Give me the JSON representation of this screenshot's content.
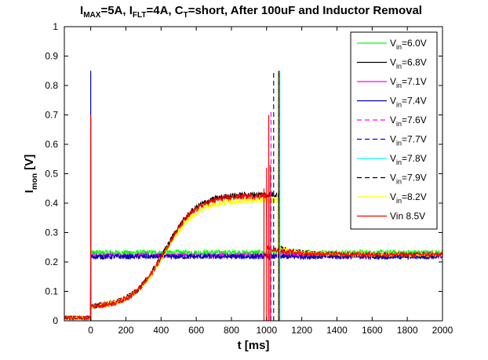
{
  "chart_data": {
    "type": "line",
    "title": {
      "parts": [
        {
          "text": "I",
          "style": "normal"
        },
        {
          "text": "MAX",
          "style": "sub"
        },
        {
          "text": "=5A, I",
          "style": "normal"
        },
        {
          "text": "FLT",
          "style": "sub"
        },
        {
          "text": "=4A, C",
          "style": "normal"
        },
        {
          "text": "T",
          "style": "sub"
        },
        {
          "text": "=short, After 100uF and Inductor Removal",
          "style": "normal"
        }
      ]
    },
    "xlabel": "t [ms]",
    "ylabel": {
      "main": "I",
      "sub": "mon",
      "rest": " [V]"
    },
    "xlim": [
      -150,
      2000
    ],
    "ylim": [
      0,
      1
    ],
    "xticks": [
      0,
      200,
      400,
      600,
      800,
      1000,
      1200,
      1400,
      1600,
      1800,
      2000
    ],
    "yticks": [
      0,
      0.1,
      0.2,
      0.3,
      0.4,
      0.5,
      0.6,
      0.7,
      0.8,
      0.9,
      1
    ],
    "xtick_labels": [
      "0",
      "200",
      "400",
      "600",
      "800",
      "1000",
      "1200",
      "1400",
      "1600",
      "1800",
      "2000"
    ],
    "ytick_labels": [
      "0",
      "0.1",
      "0.2",
      "0.3",
      "0.4",
      "0.5",
      "0.6",
      "0.7",
      "0.8",
      "0.9",
      "1"
    ],
    "grid": false,
    "legend_position": "top-right",
    "series": [
      {
        "name": "V_in=6.0V",
        "label_parts": [
          "V",
          "in",
          "=6.0V"
        ],
        "color": "#00ff00",
        "dash": "solid",
        "profile": "flat",
        "level": 0.232,
        "spike_t": 0,
        "spike_v": 0.6
      },
      {
        "name": "V_in=6.8V",
        "label_parts": [
          "V",
          "in",
          "=6.8V"
        ],
        "color": "#000000",
        "dash": "solid",
        "profile": "ramp",
        "level": 0.43,
        "switch_t": 1070,
        "spike_t": 1070,
        "spike_v": 0.85
      },
      {
        "name": "V_in=7.1V",
        "label_parts": [
          "V",
          "in",
          "=7.1V"
        ],
        "color": "#ff00ff",
        "dash": "solid",
        "profile": "flat",
        "level": 0.222,
        "spike_t": 0,
        "spike_v": 0.55
      },
      {
        "name": "V_in=7.4V",
        "label_parts": [
          "V",
          "in",
          "=7.4V"
        ],
        "color": "#0000b4",
        "dash": "solid",
        "profile": "flat",
        "level": 0.218,
        "spike_t": 0,
        "spike_v": 0.85
      },
      {
        "name": "V_in=7.6V",
        "label_parts": [
          "V",
          "in",
          "=7.6V"
        ],
        "color": "#ff00ff",
        "dash": "dashed",
        "profile": "none",
        "spike_t": 1025,
        "spike_v": 0.72
      },
      {
        "name": "V_in=7.7V",
        "label_parts": [
          "V",
          "in",
          "=7.7V"
        ],
        "color": "#0000ff",
        "dash": "dashed",
        "profile": "none",
        "spike_t": 1040,
        "spike_v": 0.85
      },
      {
        "name": "V_in=7.8V",
        "label_parts": [
          "V",
          "in",
          "=7.8V"
        ],
        "color": "#00ffff",
        "dash": "solid",
        "profile": "none",
        "spike_t": 1075,
        "spike_v": 0.85
      },
      {
        "name": "V_in=7.9V",
        "label_parts": [
          "V",
          "in",
          "=7.9V"
        ],
        "color": "#000000",
        "dash": "dashed",
        "profile": "none",
        "spike_t": 1070,
        "spike_v": 0.85
      },
      {
        "name": "V_in=8.2V",
        "label_parts": [
          "V",
          "in",
          "=8.2V"
        ],
        "color": "#ffff00",
        "dash": "solid",
        "profile": "ramp",
        "level": 0.41,
        "switch_t": 1065,
        "spike_t": 1062,
        "spike_v": 0.85
      },
      {
        "name": "Vin 8.5V",
        "label_parts": [
          "Vin 8.5V"
        ],
        "color": "#ff0000",
        "dash": "solid",
        "profile": "ramp",
        "level": 0.425,
        "switch_t": 1000,
        "spike_t": 0,
        "spike_v": 0.7,
        "extra_spikes": [
          [
            985,
            0.45
          ],
          [
            1000,
            0.52
          ],
          [
            1012,
            0.7
          ],
          [
            1020,
            0.53
          ]
        ]
      }
    ]
  }
}
